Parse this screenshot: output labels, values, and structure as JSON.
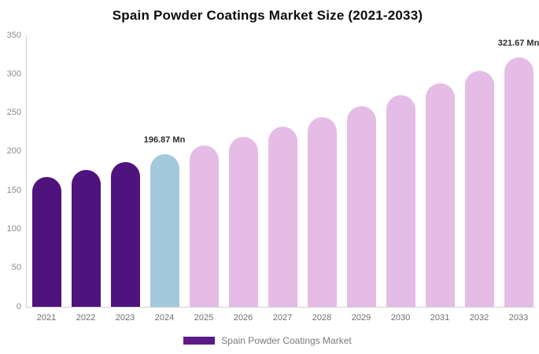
{
  "title": "Spain Powder Coatings Market Size (2021-2033)",
  "legend": {
    "items": [
      {
        "label": "Spain Powder Coatings Market",
        "color": "#5c1a87"
      }
    ]
  },
  "chart_data": {
    "type": "bar",
    "title": "Spain Powder Coatings Market Size (2021-2033)",
    "categories": [
      "2021",
      "2022",
      "2023",
      "2024",
      "2025",
      "2026",
      "2027",
      "2028",
      "2029",
      "2030",
      "2031",
      "2032",
      "2033"
    ],
    "values": [
      167.7,
      176.8,
      186.3,
      196.87,
      207.9,
      219.6,
      231.9,
      244.9,
      258.6,
      273.1,
      288.4,
      304.6,
      321.67
    ],
    "unit": "Mn",
    "ylim": [
      0,
      350
    ],
    "yticks": [
      0,
      50,
      100,
      150,
      200,
      250,
      300,
      350
    ],
    "grid": false,
    "legend_position": "bottom",
    "bar_colors": {
      "historical": "#4f137d",
      "current": "#a3c9dd",
      "forecast": "#e4bce6"
    },
    "segments": [
      "historical",
      "historical",
      "historical",
      "current",
      "forecast",
      "forecast",
      "forecast",
      "forecast",
      "forecast",
      "forecast",
      "forecast",
      "forecast",
      "forecast"
    ],
    "data_labels": [
      {
        "index": 3,
        "text": "196.87 Mn"
      },
      {
        "index": 12,
        "text": "321.67 Mn"
      }
    ],
    "axis_color": "#d2d2d2"
  }
}
